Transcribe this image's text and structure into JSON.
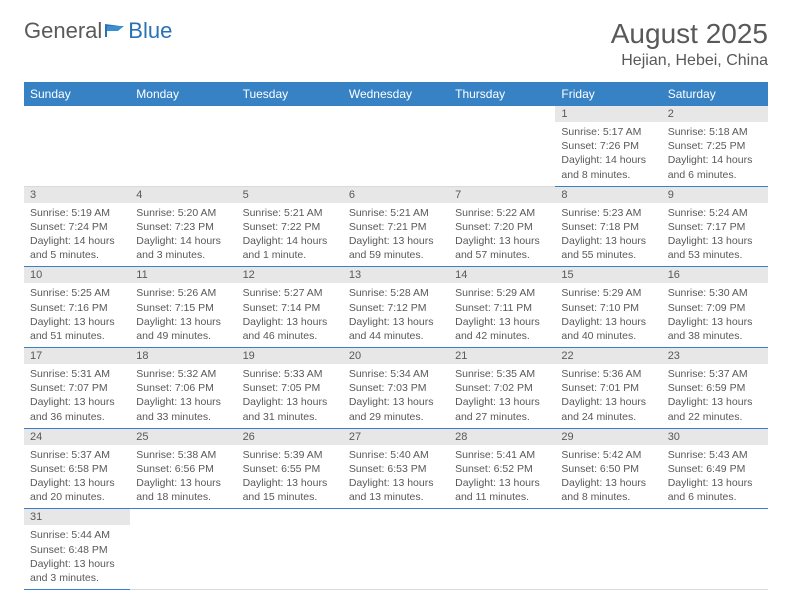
{
  "logo": {
    "general": "General",
    "blue": "Blue"
  },
  "header": {
    "month": "August 2025",
    "location": "Hejian, Hebei, China"
  },
  "colors": {
    "header_bg": "#3682c4",
    "header_fg": "#ffffff",
    "daynum_bg": "#e7e7e7",
    "text": "#595959",
    "rule": "#3682c4"
  },
  "weekdays": [
    "Sunday",
    "Monday",
    "Tuesday",
    "Wednesday",
    "Thursday",
    "Friday",
    "Saturday"
  ],
  "weeks": [
    [
      null,
      null,
      null,
      null,
      null,
      {
        "n": "1",
        "sr": "Sunrise: 5:17 AM",
        "ss": "Sunset: 7:26 PM",
        "dl": "Daylight: 14 hours and 8 minutes."
      },
      {
        "n": "2",
        "sr": "Sunrise: 5:18 AM",
        "ss": "Sunset: 7:25 PM",
        "dl": "Daylight: 14 hours and 6 minutes."
      }
    ],
    [
      {
        "n": "3",
        "sr": "Sunrise: 5:19 AM",
        "ss": "Sunset: 7:24 PM",
        "dl": "Daylight: 14 hours and 5 minutes."
      },
      {
        "n": "4",
        "sr": "Sunrise: 5:20 AM",
        "ss": "Sunset: 7:23 PM",
        "dl": "Daylight: 14 hours and 3 minutes."
      },
      {
        "n": "5",
        "sr": "Sunrise: 5:21 AM",
        "ss": "Sunset: 7:22 PM",
        "dl": "Daylight: 14 hours and 1 minute."
      },
      {
        "n": "6",
        "sr": "Sunrise: 5:21 AM",
        "ss": "Sunset: 7:21 PM",
        "dl": "Daylight: 13 hours and 59 minutes."
      },
      {
        "n": "7",
        "sr": "Sunrise: 5:22 AM",
        "ss": "Sunset: 7:20 PM",
        "dl": "Daylight: 13 hours and 57 minutes."
      },
      {
        "n": "8",
        "sr": "Sunrise: 5:23 AM",
        "ss": "Sunset: 7:18 PM",
        "dl": "Daylight: 13 hours and 55 minutes."
      },
      {
        "n": "9",
        "sr": "Sunrise: 5:24 AM",
        "ss": "Sunset: 7:17 PM",
        "dl": "Daylight: 13 hours and 53 minutes."
      }
    ],
    [
      {
        "n": "10",
        "sr": "Sunrise: 5:25 AM",
        "ss": "Sunset: 7:16 PM",
        "dl": "Daylight: 13 hours and 51 minutes."
      },
      {
        "n": "11",
        "sr": "Sunrise: 5:26 AM",
        "ss": "Sunset: 7:15 PM",
        "dl": "Daylight: 13 hours and 49 minutes."
      },
      {
        "n": "12",
        "sr": "Sunrise: 5:27 AM",
        "ss": "Sunset: 7:14 PM",
        "dl": "Daylight: 13 hours and 46 minutes."
      },
      {
        "n": "13",
        "sr": "Sunrise: 5:28 AM",
        "ss": "Sunset: 7:12 PM",
        "dl": "Daylight: 13 hours and 44 minutes."
      },
      {
        "n": "14",
        "sr": "Sunrise: 5:29 AM",
        "ss": "Sunset: 7:11 PM",
        "dl": "Daylight: 13 hours and 42 minutes."
      },
      {
        "n": "15",
        "sr": "Sunrise: 5:29 AM",
        "ss": "Sunset: 7:10 PM",
        "dl": "Daylight: 13 hours and 40 minutes."
      },
      {
        "n": "16",
        "sr": "Sunrise: 5:30 AM",
        "ss": "Sunset: 7:09 PM",
        "dl": "Daylight: 13 hours and 38 minutes."
      }
    ],
    [
      {
        "n": "17",
        "sr": "Sunrise: 5:31 AM",
        "ss": "Sunset: 7:07 PM",
        "dl": "Daylight: 13 hours and 36 minutes."
      },
      {
        "n": "18",
        "sr": "Sunrise: 5:32 AM",
        "ss": "Sunset: 7:06 PM",
        "dl": "Daylight: 13 hours and 33 minutes."
      },
      {
        "n": "19",
        "sr": "Sunrise: 5:33 AM",
        "ss": "Sunset: 7:05 PM",
        "dl": "Daylight: 13 hours and 31 minutes."
      },
      {
        "n": "20",
        "sr": "Sunrise: 5:34 AM",
        "ss": "Sunset: 7:03 PM",
        "dl": "Daylight: 13 hours and 29 minutes."
      },
      {
        "n": "21",
        "sr": "Sunrise: 5:35 AM",
        "ss": "Sunset: 7:02 PM",
        "dl": "Daylight: 13 hours and 27 minutes."
      },
      {
        "n": "22",
        "sr": "Sunrise: 5:36 AM",
        "ss": "Sunset: 7:01 PM",
        "dl": "Daylight: 13 hours and 24 minutes."
      },
      {
        "n": "23",
        "sr": "Sunrise: 5:37 AM",
        "ss": "Sunset: 6:59 PM",
        "dl": "Daylight: 13 hours and 22 minutes."
      }
    ],
    [
      {
        "n": "24",
        "sr": "Sunrise: 5:37 AM",
        "ss": "Sunset: 6:58 PM",
        "dl": "Daylight: 13 hours and 20 minutes."
      },
      {
        "n": "25",
        "sr": "Sunrise: 5:38 AM",
        "ss": "Sunset: 6:56 PM",
        "dl": "Daylight: 13 hours and 18 minutes."
      },
      {
        "n": "26",
        "sr": "Sunrise: 5:39 AM",
        "ss": "Sunset: 6:55 PM",
        "dl": "Daylight: 13 hours and 15 minutes."
      },
      {
        "n": "27",
        "sr": "Sunrise: 5:40 AM",
        "ss": "Sunset: 6:53 PM",
        "dl": "Daylight: 13 hours and 13 minutes."
      },
      {
        "n": "28",
        "sr": "Sunrise: 5:41 AM",
        "ss": "Sunset: 6:52 PM",
        "dl": "Daylight: 13 hours and 11 minutes."
      },
      {
        "n": "29",
        "sr": "Sunrise: 5:42 AM",
        "ss": "Sunset: 6:50 PM",
        "dl": "Daylight: 13 hours and 8 minutes."
      },
      {
        "n": "30",
        "sr": "Sunrise: 5:43 AM",
        "ss": "Sunset: 6:49 PM",
        "dl": "Daylight: 13 hours and 6 minutes."
      }
    ],
    [
      {
        "n": "31",
        "sr": "Sunrise: 5:44 AM",
        "ss": "Sunset: 6:48 PM",
        "dl": "Daylight: 13 hours and 3 minutes."
      },
      null,
      null,
      null,
      null,
      null,
      null
    ]
  ]
}
